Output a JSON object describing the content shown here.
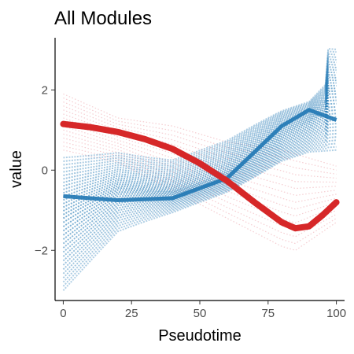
{
  "chart_data": {
    "type": "line",
    "title": "All Modules",
    "xlabel": "Pseudotime",
    "ylabel": "value",
    "xlim": [
      -3,
      103
    ],
    "ylim": [
      -3.25,
      3.3
    ],
    "xticks": [
      0,
      25,
      50,
      75,
      100
    ],
    "xtick_labels": [
      "0",
      "25",
      "50",
      "75",
      "100"
    ],
    "yticks": [
      -2,
      0,
      2
    ],
    "ytick_labels": [
      "−2",
      "0",
      "2"
    ],
    "grid": false,
    "legend": "none",
    "colors": {
      "blue_band": "#1f77b4",
      "pink_band": "#e8909a",
      "summary_line": "#d62728",
      "axis": "#000000"
    },
    "series": [
      {
        "role": "summary",
        "x": [
          0,
          10,
          20,
          30,
          40,
          50,
          60,
          70,
          80,
          85,
          90,
          95,
          100
        ],
        "values": [
          1.15,
          1.07,
          0.95,
          0.77,
          0.53,
          0.17,
          -0.27,
          -0.8,
          -1.3,
          -1.45,
          -1.4,
          -1.12,
          -0.8
        ]
      }
    ],
    "band_extents": {
      "blue_upper": {
        "x": [
          0,
          20,
          40,
          60,
          80,
          90,
          96,
          97,
          100
        ],
        "values": [
          0.3,
          0.5,
          0.3,
          0.7,
          1.4,
          1.65,
          2.1,
          3.0,
          3.0
        ]
      },
      "blue_lower": {
        "x": [
          0,
          20,
          40,
          60,
          80,
          90,
          100
        ],
        "values": [
          -3.0,
          -1.6,
          -1.1,
          -0.5,
          0.3,
          0.5,
          0.5
        ]
      },
      "pink_upper": {
        "x": [
          0,
          20,
          40,
          60,
          80,
          100
        ],
        "values": [
          1.9,
          1.3,
          1.1,
          0.7,
          0.5,
          0.1
        ]
      },
      "pink_lower": {
        "x": [
          0,
          20,
          40,
          60,
          80,
          85,
          100
        ],
        "values": [
          0.5,
          0.2,
          -0.5,
          -1.2,
          -1.9,
          -2.0,
          -1.3
        ]
      }
    }
  }
}
